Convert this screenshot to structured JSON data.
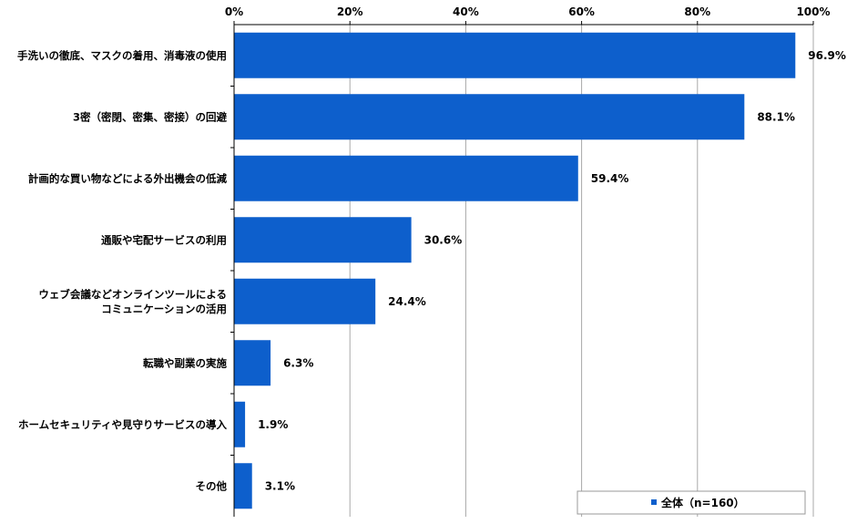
{
  "chart_data": {
    "type": "bar",
    "orientation": "horizontal",
    "categories": [
      [
        "手洗いの徹底、マスクの着用、消毒液の使用"
      ],
      [
        "3密（密閉、密集、密接）の回避"
      ],
      [
        "計画的な買い物などによる外出機会の低減"
      ],
      [
        "通販や宅配サービスの利用"
      ],
      [
        "ウェブ会議などオンラインツールによる",
        "コミュニケーションの活用"
      ],
      [
        "転職や副業の実施"
      ],
      [
        "ホームセキュリティや見守りサービスの導入"
      ],
      [
        "その他"
      ]
    ],
    "series": [
      {
        "name": "全体（n=160）",
        "values": [
          96.9,
          88.1,
          59.4,
          30.6,
          24.4,
          6.3,
          1.9,
          3.1
        ]
      }
    ],
    "value_labels": [
      "96.9%",
      "88.1%",
      "59.4%",
      "30.6%",
      "24.4%",
      "6.3%",
      "1.9%",
      "3.1%"
    ],
    "xlim": [
      0,
      100
    ],
    "x_ticks": [
      0,
      20,
      40,
      60,
      80,
      100
    ],
    "x_tick_labels": [
      "0%",
      "20%",
      "40%",
      "60%",
      "80%",
      "100%"
    ],
    "grid": true,
    "legend_position": "bottom-right",
    "colors": {
      "bar": "#0d5fcc",
      "grid": "#a8a8a8",
      "axis": "#000000"
    }
  }
}
